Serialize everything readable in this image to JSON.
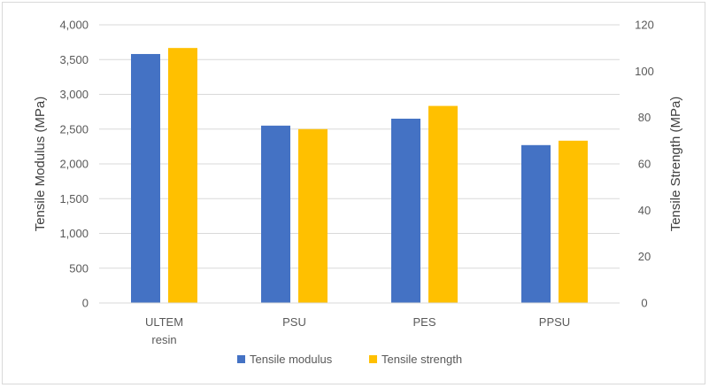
{
  "chart_data": {
    "type": "bar",
    "categories": [
      "ULTEM resin",
      "PSU",
      "PES",
      "PPSU"
    ],
    "category_lines": [
      [
        "ULTEM",
        "resin"
      ],
      [
        "PSU"
      ],
      [
        "PES"
      ],
      [
        "PPSU"
      ]
    ],
    "series": [
      {
        "name": "Tensile modulus",
        "axis": "left",
        "color": "#4472C4",
        "values": [
          3580,
          2550,
          2650,
          2270
        ]
      },
      {
        "name": "Tensile strength",
        "axis": "right",
        "color": "#FFC000",
        "values": [
          110,
          75,
          85,
          70
        ]
      }
    ],
    "title": "",
    "xlabel": "",
    "ylabel": "Tensile Modulus (MPa)",
    "y2label": "Tensile Strength (MPa)",
    "ylim": [
      0,
      4000
    ],
    "y2lim": [
      0,
      120
    ],
    "yticks": [
      "0",
      "500",
      "1,000",
      "1,500",
      "2,000",
      "2,500",
      "3,000",
      "3,500",
      "4,000"
    ],
    "y2ticks": [
      "0",
      "20",
      "40",
      "60",
      "80",
      "100",
      "120"
    ],
    "grid": true,
    "legend": "bottom"
  }
}
